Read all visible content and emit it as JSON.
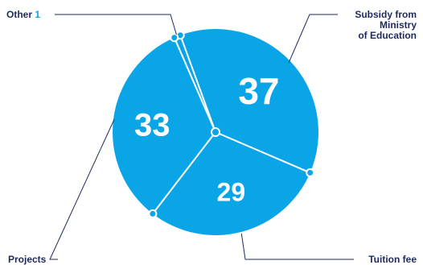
{
  "chart_data": {
    "type": "pie",
    "categories": [
      "Subsidy from Ministry of Education",
      "Tuition fee",
      "Projects",
      "Other"
    ],
    "values": [
      37,
      29,
      33,
      1
    ],
    "slice_labels": [
      "37",
      "29",
      "33",
      "1"
    ],
    "label_lines": [
      [
        "Subsidy from",
        "Ministry",
        "of Education"
      ],
      [
        "Tuition fee"
      ],
      [
        "Projects"
      ],
      [
        "Other"
      ]
    ],
    "start_angle_deg": -20,
    "direction": "clockwise",
    "legend": "none",
    "colors": {
      "slice_fill": "#0aa5e6",
      "divider": "#ffffff",
      "label_text": "#1f2a5c",
      "leader_line": "#1f2a5c",
      "small_value": "#0aa5e6"
    }
  }
}
